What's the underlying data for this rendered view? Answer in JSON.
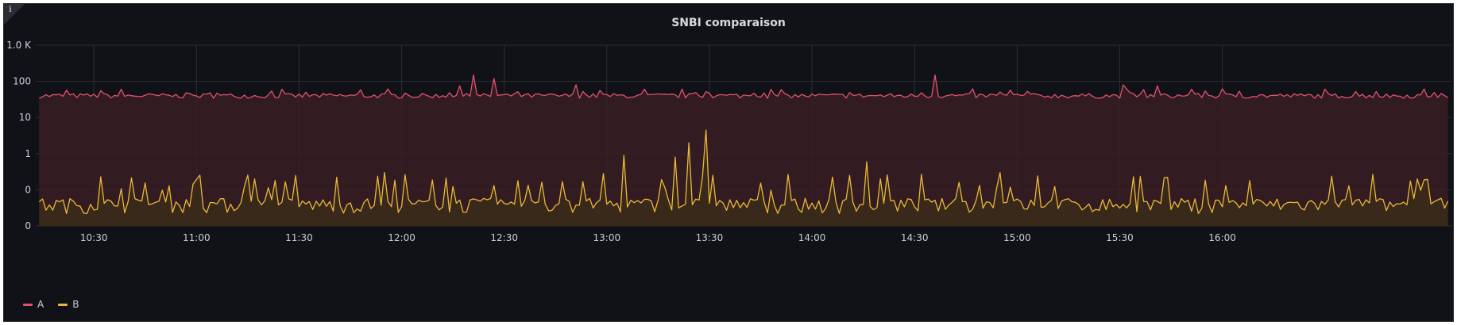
{
  "panel": {
    "info_icon": "info-icon"
  },
  "chart_data": {
    "type": "area",
    "title": "SNBI comparaison",
    "y_scale": "log",
    "y_ticks": [
      "0",
      "0",
      "1",
      "10",
      "100",
      "1.0 K"
    ],
    "x_ticks": [
      "10:30",
      "11:00",
      "11:30",
      "12:00",
      "12:30",
      "13:00",
      "13:30",
      "14:00",
      "14:30",
      "15:00",
      "15:30",
      "16:00"
    ],
    "grid": true,
    "legend_position": "bottom-left",
    "series": [
      {
        "name": "A",
        "color": "#e0536d",
        "fill": "#3a1d25",
        "base": 40,
        "spikes": [
          {
            "x": "10:32",
            "y": 55
          },
          {
            "x": "11:04",
            "y": 48
          },
          {
            "x": "11:32",
            "y": 50
          },
          {
            "x": "12:17",
            "y": 75
          },
          {
            "x": "12:21",
            "y": 150
          },
          {
            "x": "12:27",
            "y": 120
          },
          {
            "x": "12:51",
            "y": 80
          },
          {
            "x": "13:29",
            "y": 52
          },
          {
            "x": "14:36",
            "y": 150
          },
          {
            "x": "15:31",
            "y": 80
          },
          {
            "x": "15:41",
            "y": 75
          },
          {
            "x": "15:51",
            "y": 60
          },
          {
            "x": "16:00",
            "y": 62
          }
        ]
      },
      {
        "name": "B",
        "color": "#eab839",
        "fill": "#3b2b1a",
        "base": 0.04,
        "spikes": [
          {
            "x": "11:29",
            "y": 0.25
          },
          {
            "x": "11:55",
            "y": 0.3
          },
          {
            "x": "12:59",
            "y": 0.28
          },
          {
            "x": "13:05",
            "y": 0.9
          },
          {
            "x": "13:20",
            "y": 0.8
          },
          {
            "x": "13:24",
            "y": 2
          },
          {
            "x": "13:29",
            "y": 4.5
          },
          {
            "x": "14:11",
            "y": 0.25
          },
          {
            "x": "14:16",
            "y": 0.6
          },
          {
            "x": "14:55",
            "y": 0.3
          },
          {
            "x": "15:44",
            "y": 0.22
          },
          {
            "x": "16:08",
            "y": 0.18
          }
        ]
      }
    ]
  }
}
